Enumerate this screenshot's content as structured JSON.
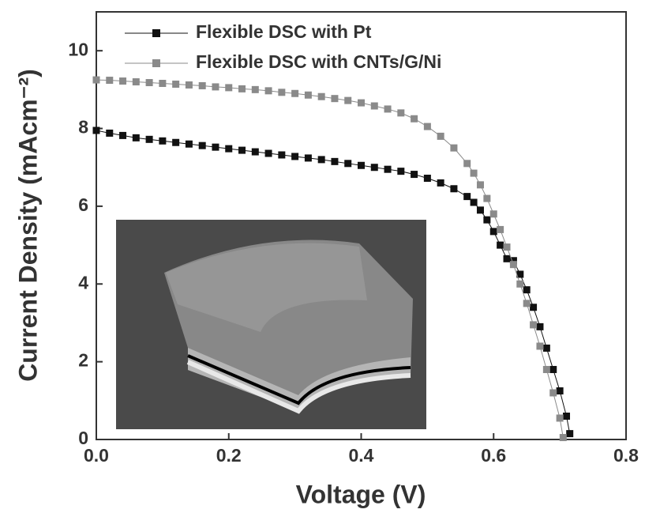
{
  "chart_data": {
    "type": "line",
    "xlabel": "Voltage (V)",
    "ylabel": "Current Density (mAcm⁻²)",
    "xlim": [
      0,
      0.8
    ],
    "ylim": [
      0,
      11
    ],
    "xticks": [
      {
        "value": 0,
        "label": "0.0"
      },
      0.2,
      0.4,
      0.6,
      0.8
    ],
    "yticks": [
      0,
      2,
      4,
      6,
      8,
      10
    ],
    "legend": "top-left",
    "series": [
      {
        "name": "Flexible DSC with Pt",
        "color": "#111111",
        "x": [
          0,
          0.02,
          0.04,
          0.06,
          0.08,
          0.1,
          0.12,
          0.14,
          0.16,
          0.18,
          0.2,
          0.22,
          0.24,
          0.26,
          0.28,
          0.3,
          0.32,
          0.34,
          0.36,
          0.38,
          0.4,
          0.42,
          0.44,
          0.46,
          0.48,
          0.5,
          0.52,
          0.54,
          0.56,
          0.57,
          0.58,
          0.59,
          0.6,
          0.61,
          0.62,
          0.63,
          0.64,
          0.65,
          0.66,
          0.67,
          0.68,
          0.69,
          0.7,
          0.71,
          0.715
        ],
        "values": [
          7.95,
          7.88,
          7.82,
          7.76,
          7.72,
          7.68,
          7.64,
          7.6,
          7.56,
          7.52,
          7.48,
          7.44,
          7.4,
          7.36,
          7.32,
          7.28,
          7.24,
          7.2,
          7.15,
          7.1,
          7.05,
          7.0,
          6.95,
          6.9,
          6.82,
          6.72,
          6.6,
          6.45,
          6.25,
          6.1,
          5.9,
          5.65,
          5.35,
          5.0,
          4.65,
          4.6,
          4.25,
          3.85,
          3.4,
          2.9,
          2.35,
          1.8,
          1.25,
          0.6,
          0.15
        ]
      },
      {
        "name": "Flexible DSC with CNTs/G/Ni",
        "color": "#8a8a8a",
        "x": [
          0,
          0.02,
          0.04,
          0.06,
          0.08,
          0.1,
          0.12,
          0.14,
          0.16,
          0.18,
          0.2,
          0.22,
          0.24,
          0.26,
          0.28,
          0.3,
          0.32,
          0.34,
          0.36,
          0.38,
          0.4,
          0.42,
          0.44,
          0.46,
          0.48,
          0.5,
          0.52,
          0.54,
          0.56,
          0.57,
          0.58,
          0.59,
          0.6,
          0.61,
          0.62,
          0.63,
          0.64,
          0.65,
          0.66,
          0.67,
          0.68,
          0.69,
          0.7,
          0.705
        ],
        "values": [
          9.25,
          9.24,
          9.22,
          9.2,
          9.18,
          9.16,
          9.14,
          9.12,
          9.1,
          9.07,
          9.05,
          9.02,
          9.0,
          8.97,
          8.93,
          8.9,
          8.86,
          8.82,
          8.77,
          8.72,
          8.66,
          8.58,
          8.5,
          8.4,
          8.25,
          8.05,
          7.8,
          7.5,
          7.1,
          6.85,
          6.55,
          6.2,
          5.8,
          5.4,
          4.95,
          4.5,
          4.0,
          3.5,
          2.95,
          2.4,
          1.8,
          1.2,
          0.55,
          0.05
        ]
      }
    ]
  }
}
